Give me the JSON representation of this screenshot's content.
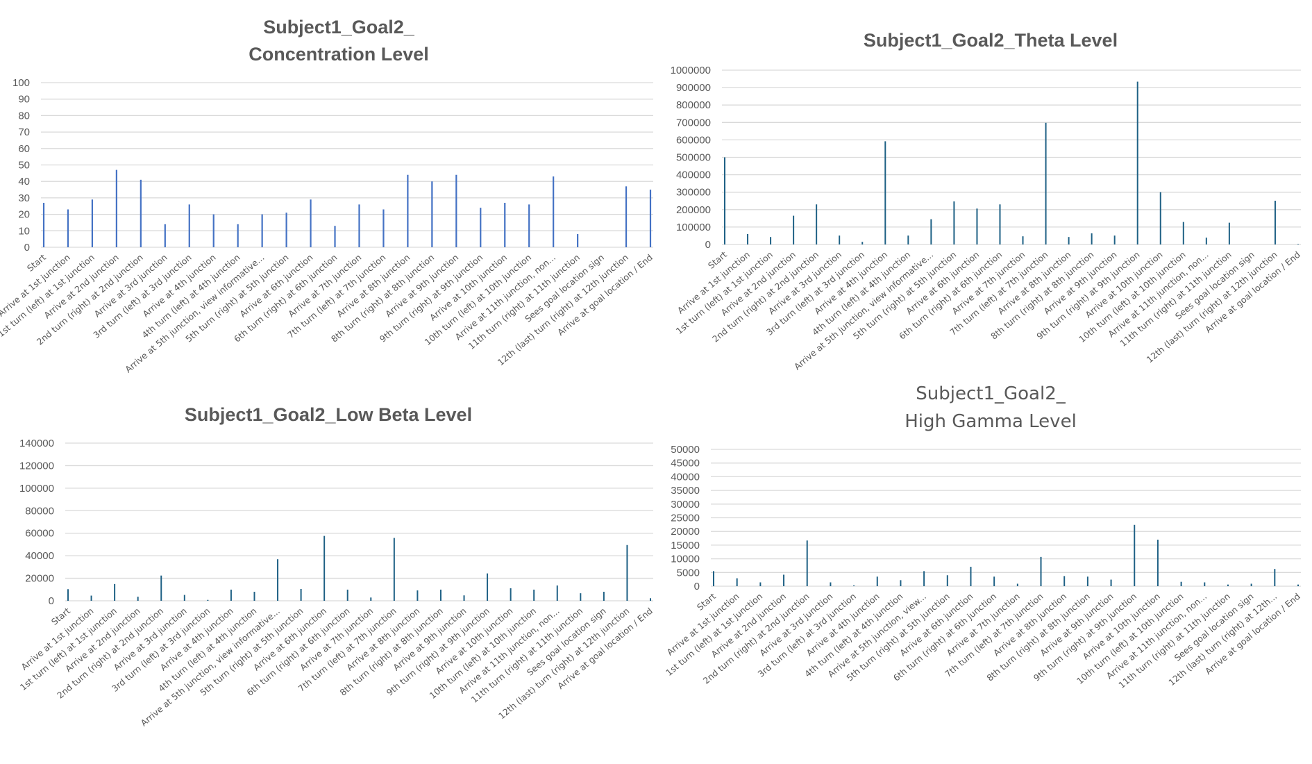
{
  "chart_data": [
    {
      "type": "bar",
      "title": [
        "Subject1_Goal2_",
        "Concentration Level"
      ],
      "title_style": "bold",
      "color": "#4472C4",
      "ylim": [
        0,
        100
      ],
      "yticks": [
        0,
        10,
        20,
        30,
        40,
        50,
        60,
        70,
        80,
        90,
        100
      ],
      "grid": true,
      "categories": [
        "Start",
        "Arrive at 1st junction",
        "1st turn (left) at 1st junction",
        "Arrive at 2nd junction",
        "2nd turn (right) at 2nd junction",
        "Arrive at 3rd junction",
        "3rd turn (left) at 3rd junction",
        "Arrive at 4th junction",
        "4th turn (left) at 4th junction",
        "Arrive at 5th junction, view informative...",
        "5th turn (right) at 5th junction",
        "Arrive at 6th junction",
        "6th turn (right) at 6th junction",
        "Arrive at 7th junction",
        "7th turn (left) at 7th junction",
        "Arrive at 8th junction",
        "8th turn (right) at 8th junction",
        "Arrive at 9th junction",
        "9th turn (right) at 9th junction",
        "Arrive at 10th junction",
        "10th turn (left) at 10th junction",
        "Arrive at 11th junction, non...",
        "11th turn (right) at 11th junction",
        "Sees goal location sign",
        "12th (last) turn (right) at 12th junction",
        "Arrive at goal location / End"
      ],
      "values": [
        27,
        23,
        29,
        47,
        41,
        14,
        26,
        20,
        14,
        20,
        21,
        29,
        13,
        26,
        23,
        44,
        40,
        44,
        24,
        27,
        26,
        43,
        8,
        0,
        37,
        35
      ]
    },
    {
      "type": "bar",
      "title": [
        "Subject1_Goal2_Theta Level"
      ],
      "title_style": "bold",
      "color": "#1F6185",
      "ylim": [
        0,
        1000000
      ],
      "yticks": [
        0,
        100000,
        200000,
        300000,
        400000,
        500000,
        600000,
        700000,
        800000,
        900000,
        1000000
      ],
      "grid": true,
      "categories": [
        "Start",
        "Arrive at 1st junction",
        "1st turn (left) at 1st junction",
        "Arrive at 2nd junction",
        "2nd turn (right) at 2nd junction",
        "Arrive at 3rd junction",
        "3rd turn (left) at 3rd junction",
        "Arrive at 4th junction",
        "4th turn (left) at 4th junction",
        "Arrive at 5th junction, view informative...",
        "5th turn (right) at 5th junction",
        "Arrive at 6th junction",
        "6th turn (right) at 6th junction",
        "Arrive at 7th junction",
        "7th turn (left) at 7th junction",
        "Arrive at 8th junction",
        "8th turn (right) at 8th junction",
        "Arrive at 9th junction",
        "9th turn (right) at 9th junction",
        "Arrive at 10th junction",
        "10th turn (left) at 10th junction",
        "Arrive at 11th junction, non...",
        "11th turn (right) at 11th junction",
        "Sees goal location sign",
        "12th (last) turn (right) at 12th junction",
        "Arrive at goal location / End"
      ],
      "values": [
        500000,
        60000,
        43000,
        165000,
        230000,
        51000,
        15000,
        592000,
        51000,
        145000,
        247000,
        206000,
        230000,
        47000,
        698000,
        43000,
        64000,
        51000,
        934000,
        300000,
        129000,
        39000,
        125000,
        0,
        251000,
        3000
      ]
    },
    {
      "type": "bar",
      "title": [
        "Subject1_Goal2_Low Beta Level"
      ],
      "title_style": "bold",
      "color": "#1F6185",
      "ylim": [
        0,
        140000
      ],
      "yticks": [
        0,
        20000,
        40000,
        60000,
        80000,
        100000,
        120000,
        140000
      ],
      "grid": true,
      "categories": [
        "Start",
        "Arrive at 1st junction",
        "1st turn (left) at 1st junction",
        "Arrive at 2nd junction",
        "2nd turn (right) at 2nd junction",
        "Arrive at 3rd junction",
        "3rd turn (left) at 3rd junction",
        "Arrive at 4th junction",
        "4th turn (left) at 4th junction",
        "Arrive at 5th junction, view informative...",
        "5th turn (right) at 5th junction",
        "Arrive at 6th junction",
        "6th turn (right) at 6th junction",
        "Arrive at 7th junction",
        "7th turn (left) at 7th junction",
        "Arrive at 8th junction",
        "8th turn (right) at 8th junction",
        "Arrive at 9th junction",
        "9th turn (right) at 9th junction",
        "Arrive at 10th junction",
        "10th turn (left) at 10th junction",
        "Arrive at 11th junction, non...",
        "11th turn (right) at 11th junction",
        "Sees goal location sign",
        "12th (last) turn (right) at 12th junction",
        "Arrive at goal location / End"
      ],
      "values": [
        10300,
        4600,
        14900,
        3600,
        22400,
        5200,
        800,
        9900,
        8000,
        36900,
        10500,
        57600,
        9900,
        2900,
        55800,
        9200,
        9900,
        4800,
        24300,
        11100,
        9900,
        13600,
        6700,
        8000,
        49500,
        2300
      ]
    },
    {
      "type": "bar",
      "title": [
        "Subject1_Goal2_",
        "High Gamma Level"
      ],
      "title_style": "light",
      "color": "#1F6185",
      "ylim": [
        0,
        50000
      ],
      "yticks": [
        0,
        5000,
        10000,
        15000,
        20000,
        25000,
        30000,
        35000,
        40000,
        45000,
        50000
      ],
      "grid": true,
      "categories": [
        "Start",
        "Arrive at 1st junction",
        "1st turn (left) at 1st junction",
        "Arrive at 2nd junction",
        "2nd turn (right) at 2nd junction",
        "Arrive at 3rd junction",
        "3rd turn (left) at 3rd junction",
        "Arrive at 4th junction",
        "4th turn (left) at 4th junction",
        "Arrive at 5th junction, view...",
        "5th turn (right) at 5th junction",
        "Arrive at 6th junction",
        "6th turn (right) at 6th junction",
        "Arrive at 7th junction",
        "7th turn (left) at 7th junction",
        "Arrive at 8th junction",
        "8th turn (right) at 8th junction",
        "Arrive at 9th junction",
        "9th turn (right) at 9th junction",
        "Arrive at 10th junction",
        "10th turn (left) at 10th junction",
        "Arrive at 11th junction, non...",
        "11th turn (right) at 11th junction",
        "Sees goal location sign",
        "12th (last) turn (right) at 12th...",
        "Arrive at goal location / End"
      ],
      "values": [
        5500,
        2900,
        1400,
        4200,
        16700,
        1400,
        300,
        3500,
        2200,
        5500,
        4000,
        7100,
        3500,
        900,
        10700,
        3700,
        3500,
        2400,
        22400,
        17000,
        1600,
        1400,
        600,
        900,
        6300,
        600
      ]
    }
  ]
}
